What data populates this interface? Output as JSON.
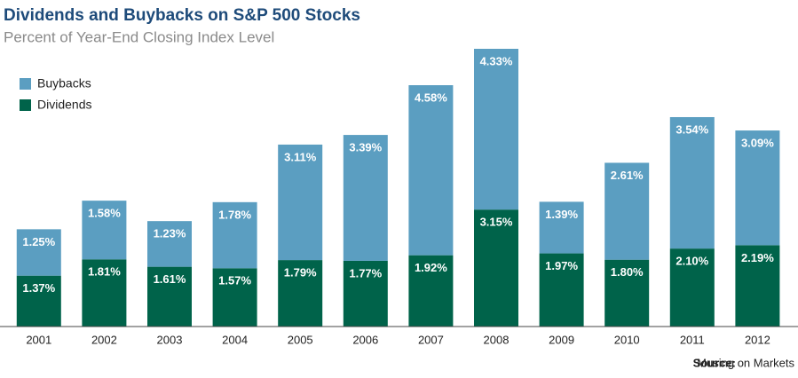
{
  "chart_data": {
    "type": "stacked_bar",
    "title": "Dividends and Buybacks on S&P 500 Stocks",
    "subtitle": "Percent of Year-End Closing Index Level",
    "categories": [
      "2001",
      "2002",
      "2003",
      "2004",
      "2005",
      "2006",
      "2007",
      "2008",
      "2009",
      "2010",
      "2011",
      "2012"
    ],
    "series": [
      {
        "name": "Dividends",
        "color": "#00634a",
        "values": [
          1.37,
          1.81,
          1.61,
          1.57,
          1.79,
          1.77,
          1.92,
          3.15,
          1.97,
          1.8,
          2.1,
          2.19
        ],
        "value_labels": [
          "1.37%",
          "1.81%",
          "1.61%",
          "1.57%",
          "1.79%",
          "1.77%",
          "1.92%",
          "3.15%",
          "1.97%",
          "1.80%",
          "2.10%",
          "2.19%"
        ]
      },
      {
        "name": "Buybacks",
        "color": "#5b9ec1",
        "values": [
          1.25,
          1.58,
          1.23,
          1.78,
          3.11,
          3.39,
          4.58,
          4.33,
          1.39,
          2.61,
          3.54,
          3.09
        ],
        "value_labels": [
          "1.25%",
          "1.58%",
          "1.23%",
          "1.78%",
          "3.11%",
          "3.39%",
          "4.58%",
          "4.33%",
          "1.39%",
          "2.61%",
          "3.54%",
          "3.09%"
        ]
      }
    ],
    "legend": "top-left",
    "source_label": "Source:",
    "source": "Musing on Markets"
  }
}
